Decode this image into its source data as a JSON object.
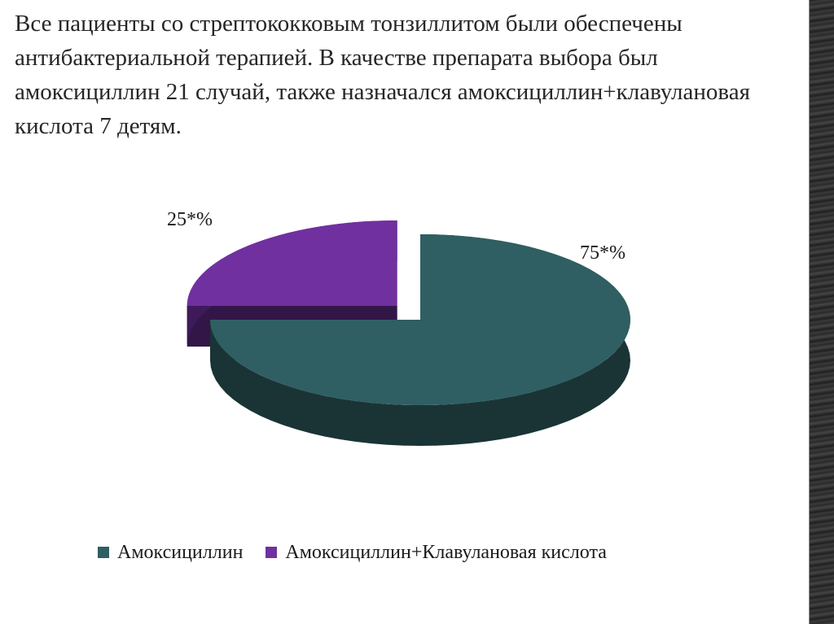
{
  "slide": {
    "text": "Все пациенты со стрептококковым тонзиллитом были обеспечены антибактериальной терапией. В качестве препарата выбора был амоксициллин 21 случай, также назначался амоксициллин+клавулановая кислота 7 детям."
  },
  "chart_data": {
    "type": "pie",
    "three_d": true,
    "exploded": true,
    "title": "",
    "legend_position": "bottom",
    "slices": [
      {
        "name": "Амоксициллин",
        "value": 75,
        "label": "75*%",
        "color": "#2f5f62"
      },
      {
        "name": "Амоксициллин+Клавулановая кислота",
        "value": 25,
        "label": "25*%",
        "color": "#7030a0"
      }
    ]
  }
}
